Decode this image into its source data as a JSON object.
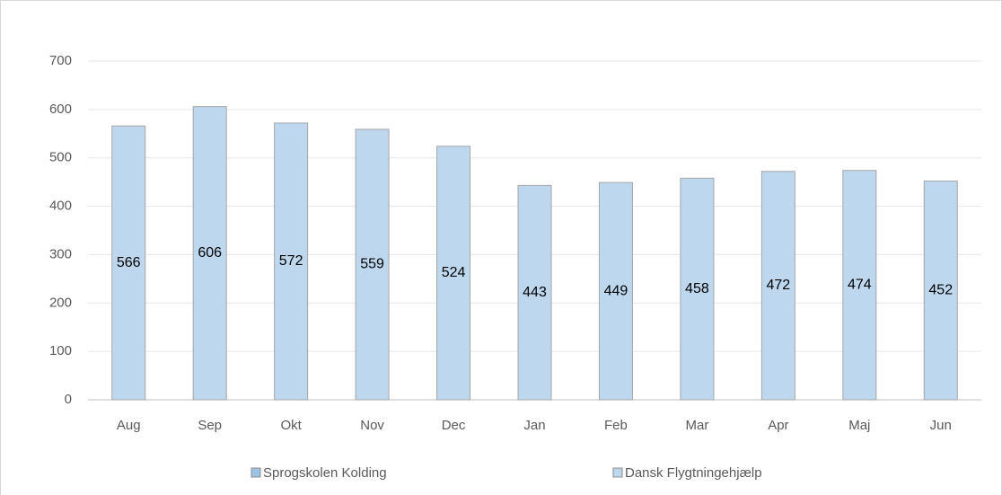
{
  "chart_data": {
    "type": "bar",
    "categories": [
      "Aug",
      "Sep",
      "Okt",
      "Nov",
      "Dec",
      "Jan",
      "Feb",
      "Mar",
      "Apr",
      "Maj",
      "Jun"
    ],
    "series": [
      {
        "name": "Sprogskolen Kolding",
        "color": "#9dc3e6",
        "values": [
          null,
          null,
          null,
          null,
          null,
          null,
          null,
          null,
          null,
          null,
          null
        ]
      },
      {
        "name": "Dansk Flygtningehjælp",
        "color": "#bdd7ee",
        "values": [
          566,
          606,
          572,
          559,
          524,
          443,
          449,
          458,
          472,
          474,
          452
        ]
      }
    ],
    "ylim": [
      0,
      700
    ],
    "yticks": [
      0,
      100,
      200,
      300,
      400,
      500,
      600,
      700
    ],
    "grid": true,
    "legend": "bottom"
  }
}
